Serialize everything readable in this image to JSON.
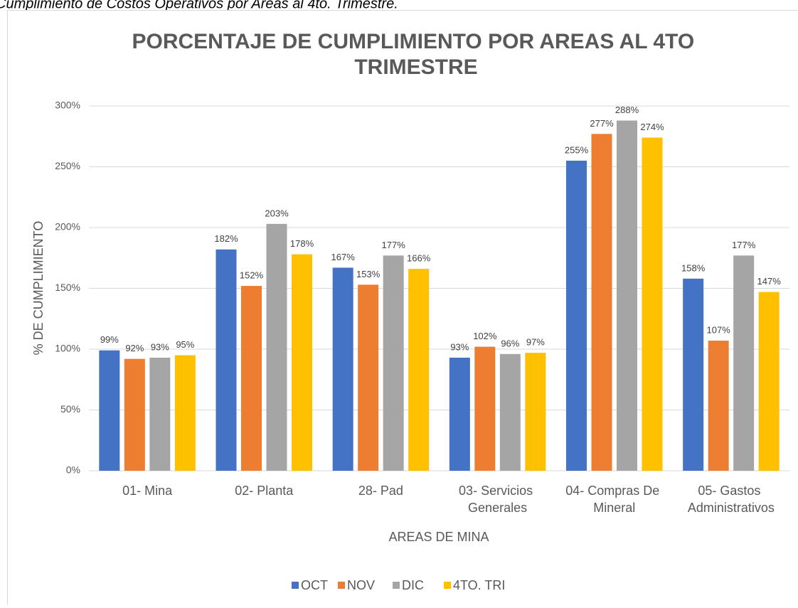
{
  "caption": "Cumplimiento de Costos Operativos por Areas al 4to. Trimestre.",
  "chart_data": {
    "type": "bar",
    "title": "PORCENTAJE DE CUMPLIMIENTO POR AREAS AL 4TO TRIMESTRE",
    "x_label": "AREAS DE MINA",
    "y_label": "% DE CUMPLIMIENTO",
    "categories": [
      "01- Mina",
      "02- Planta",
      "28- Pad",
      "03- Servicios Generales",
      "04- Compras De Mineral",
      "05- Gastos Administrativos"
    ],
    "series": [
      {
        "name": "OCT",
        "color": "#4472c4",
        "values": [
          99,
          182,
          167,
          93,
          255,
          158
        ],
        "value_labels": [
          "99%",
          "182%",
          "167%",
          "93%",
          "255%",
          "158%"
        ]
      },
      {
        "name": "NOV",
        "color": "#ed7d31",
        "values": [
          92,
          152,
          153,
          102,
          277,
          107
        ],
        "value_labels": [
          "92%",
          "152%",
          "153%",
          "102%",
          "277%",
          "107%"
        ]
      },
      {
        "name": "DIC",
        "color": "#a5a5a5",
        "values": [
          93,
          203,
          177,
          96,
          288,
          177
        ],
        "value_labels": [
          "93%",
          "203%",
          "177%",
          "96%",
          "288%",
          "177%"
        ]
      },
      {
        "name": "4TO. TRI",
        "color": "#ffc000",
        "values": [
          95,
          178,
          166,
          97,
          274,
          147
        ],
        "value_labels": [
          "95%",
          "178%",
          "166%",
          "97%",
          "274%",
          "147%"
        ]
      }
    ],
    "ylim": [
      0,
      300
    ],
    "yticks": [
      {
        "value": 0,
        "label": "0%"
      },
      {
        "value": 50,
        "label": "50%"
      },
      {
        "value": 100,
        "label": "100%"
      },
      {
        "value": 150,
        "label": "150%"
      },
      {
        "value": 200,
        "label": "200%"
      },
      {
        "value": 250,
        "label": "250%"
      },
      {
        "value": 300,
        "label": "300%"
      }
    ],
    "grid": true,
    "legend": "bottom"
  }
}
